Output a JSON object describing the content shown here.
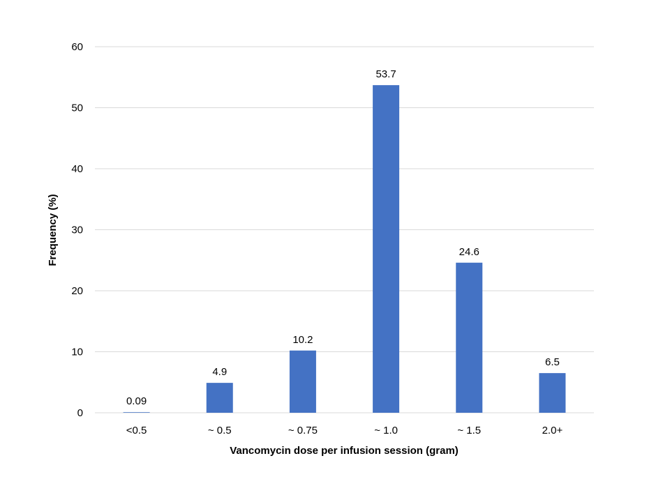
{
  "chart_data": {
    "type": "bar",
    "title": "",
    "xlabel": "Vancomycin dose per infusion session (gram)",
    "ylabel": "Frequency (%)",
    "categories": [
      "<0.5",
      "~ 0.5",
      "~ 0.75",
      "~ 1.0",
      "~ 1.5",
      "2.0+"
    ],
    "values": [
      0.09,
      4.9,
      10.2,
      53.7,
      24.6,
      6.5
    ],
    "data_labels": [
      "0.09",
      "4.9",
      "10.2",
      "53.7",
      "24.6",
      "6.5"
    ],
    "ylim": [
      0,
      60
    ],
    "yticks": [
      0,
      10,
      20,
      30,
      40,
      50,
      60
    ],
    "grid": true,
    "legend": "none",
    "bar_color": "#4472C4"
  }
}
